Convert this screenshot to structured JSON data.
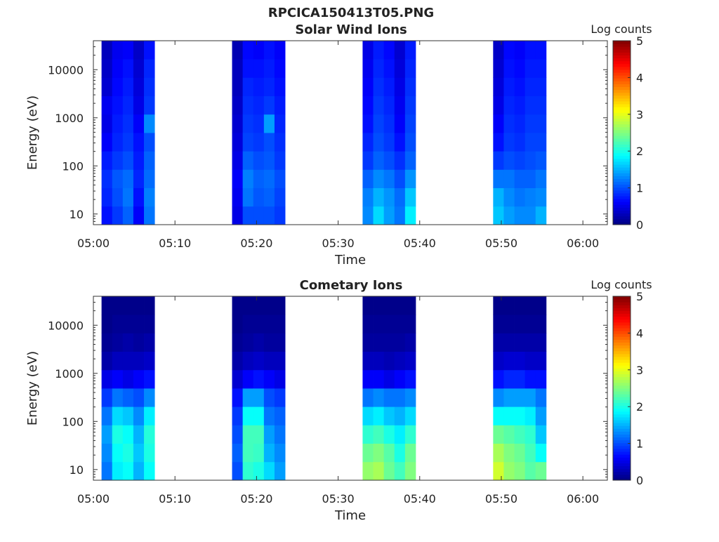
{
  "figure_title": "RPCICA150413T05.PNG",
  "chart_data": [
    {
      "type": "heatmap",
      "title": "Solar Wind Ions",
      "xlabel": "Time",
      "ylabel": "Energy (eV)",
      "y_scale": "log",
      "xlim": [
        "05:00",
        "06:03"
      ],
      "ylim": [
        6,
        40000
      ],
      "x_ticks": [
        "05:00",
        "05:10",
        "05:20",
        "05:30",
        "05:40",
        "05:50",
        "06:00"
      ],
      "y_ticks": [
        "10",
        "100",
        "1000",
        "10000"
      ],
      "colorbar": {
        "label": "Log counts",
        "range": [
          0,
          5
        ],
        "ticks": [
          "0",
          "1",
          "2",
          "3",
          "4",
          "5"
        ],
        "colormap": "jet"
      },
      "bursts": [
        {
          "start": "05:01",
          "end": "05:07.5",
          "columns": [
            [
              0.7,
              0.8,
              0.85,
              0.75,
              0.6,
              0.5,
              0.55,
              0.4,
              0.35,
              0.3
            ],
            [
              0.9,
              1.0,
              1.05,
              0.9,
              0.8,
              0.75,
              0.7,
              0.65,
              0.6,
              0.55
            ],
            [
              1.1,
              1.2,
              1.15,
              1.0,
              0.9,
              0.85,
              0.8,
              0.75,
              0.7,
              0.6
            ],
            [
              0.6,
              0.7,
              0.8,
              0.75,
              0.7,
              0.6,
              0.5,
              0.45,
              0.4,
              0.35
            ],
            [
              1.2,
              1.25,
              1.15,
              1.1,
              1.0,
              1.3,
              0.9,
              0.85,
              0.8,
              0.7
            ]
          ]
        },
        {
          "start": "05:17",
          "end": "05:23.5",
          "columns": [
            [
              0.5,
              0.55,
              0.6,
              0.5,
              0.45,
              0.4,
              0.35,
              0.3,
              0.3,
              0.25
            ],
            [
              1.0,
              1.2,
              1.25,
              1.1,
              0.95,
              0.9,
              0.85,
              0.8,
              0.7,
              0.65
            ],
            [
              1.0,
              1.05,
              1.1,
              1.0,
              0.9,
              0.85,
              0.8,
              0.75,
              0.7,
              0.6
            ],
            [
              1.0,
              1.1,
              1.15,
              1.05,
              1.0,
              1.4,
              0.9,
              0.8,
              0.75,
              0.7
            ],
            [
              0.9,
              0.95,
              1.0,
              0.9,
              0.85,
              0.8,
              0.75,
              0.7,
              0.65,
              0.6
            ]
          ]
        },
        {
          "start": "05:33",
          "end": "05:39.5",
          "columns": [
            [
              1.3,
              1.25,
              1.1,
              0.9,
              0.8,
              0.7,
              0.65,
              0.6,
              0.55,
              0.5
            ],
            [
              1.7,
              1.5,
              1.3,
              1.1,
              1.0,
              0.95,
              0.9,
              0.85,
              0.8,
              0.75
            ],
            [
              1.4,
              1.35,
              1.2,
              1.0,
              0.9,
              0.85,
              0.8,
              0.75,
              0.7,
              0.65
            ],
            [
              1.2,
              1.15,
              1.0,
              0.85,
              0.7,
              0.6,
              0.55,
              0.5,
              0.45,
              0.4
            ],
            [
              1.8,
              1.6,
              1.35,
              1.1,
              1.0,
              0.95,
              0.9,
              0.85,
              0.8,
              0.75
            ]
          ]
        },
        {
          "start": "05:49",
          "end": "05:55.5",
          "columns": [
            [
              1.6,
              1.5,
              1.2,
              0.9,
              0.7,
              0.6,
              0.5,
              0.45,
              0.4,
              0.35
            ],
            [
              1.4,
              1.3,
              1.2,
              1.0,
              0.9,
              0.85,
              0.8,
              0.75,
              0.7,
              0.65
            ],
            [
              1.3,
              1.2,
              1.1,
              0.95,
              0.85,
              0.8,
              0.75,
              0.7,
              0.65,
              0.6
            ],
            [
              1.3,
              1.25,
              1.1,
              1.0,
              0.95,
              0.9,
              0.85,
              0.8,
              0.75,
              0.7
            ],
            [
              1.5,
              1.3,
              1.2,
              1.05,
              0.95,
              0.9,
              0.85,
              0.8,
              0.75,
              0.7
            ]
          ]
        }
      ]
    },
    {
      "type": "heatmap",
      "title": "Cometary Ions",
      "xlabel": "Time",
      "ylabel": "Energy (eV)",
      "y_scale": "log",
      "xlim": [
        "05:00",
        "06:03"
      ],
      "ylim": [
        6,
        40000
      ],
      "x_ticks": [
        "05:00",
        "05:10",
        "05:20",
        "05:30",
        "05:40",
        "05:50",
        "06:00"
      ],
      "y_ticks": [
        "10",
        "100",
        "1000",
        "10000"
      ],
      "colorbar": {
        "label": "Log counts",
        "range": [
          0,
          5
        ],
        "ticks": [
          "0",
          "1",
          "2",
          "3",
          "4",
          "5"
        ],
        "colormap": "jet"
      },
      "bursts": [
        {
          "start": "05:01",
          "end": "05:07.5",
          "columns": [
            [
              1.2,
              1.3,
              1.4,
              1.2,
              0.9,
              0.5,
              0.2,
              0.1,
              0.05,
              0.05
            ],
            [
              1.8,
              1.9,
              2.0,
              1.7,
              1.2,
              0.6,
              0.3,
              0.15,
              0.1,
              0.05
            ],
            [
              1.9,
              2.0,
              1.9,
              1.6,
              1.1,
              0.5,
              0.3,
              0.2,
              0.1,
              0.05
            ],
            [
              1.5,
              1.6,
              1.5,
              1.3,
              1.0,
              0.6,
              0.3,
              0.15,
              0.1,
              0.05
            ],
            [
              1.9,
              2.0,
              2.05,
              1.8,
              1.3,
              0.7,
              0.35,
              0.2,
              0.1,
              0.05
            ]
          ]
        },
        {
          "start": "05:17",
          "end": "05:23.5",
          "columns": [
            [
              1.0,
              1.1,
              1.0,
              0.9,
              0.7,
              0.4,
              0.2,
              0.1,
              0.05,
              0.05
            ],
            [
              2.1,
              2.2,
              2.2,
              1.9,
              1.4,
              0.6,
              0.3,
              0.15,
              0.1,
              0.05
            ],
            [
              2.0,
              2.15,
              2.2,
              1.9,
              1.4,
              0.7,
              0.35,
              0.2,
              0.1,
              0.05
            ],
            [
              1.7,
              1.5,
              1.4,
              1.2,
              1.0,
              0.6,
              0.3,
              0.15,
              0.1,
              0.05
            ],
            [
              1.4,
              1.3,
              1.2,
              1.1,
              0.9,
              0.5,
              0.3,
              0.15,
              0.1,
              0.05
            ]
          ]
        },
        {
          "start": "05:33",
          "end": "05:39.5",
          "columns": [
            [
              2.6,
              2.4,
              2.1,
              1.7,
              1.2,
              0.6,
              0.3,
              0.15,
              0.1,
              0.05
            ],
            [
              2.7,
              2.5,
              2.2,
              1.8,
              1.3,
              0.6,
              0.3,
              0.15,
              0.1,
              0.05
            ],
            [
              2.4,
              2.3,
              2.0,
              1.6,
              1.2,
              0.5,
              0.25,
              0.15,
              0.1,
              0.05
            ],
            [
              2.2,
              2.0,
              1.8,
              1.5,
              1.2,
              0.6,
              0.3,
              0.15,
              0.1,
              0.05
            ],
            [
              2.5,
              2.4,
              2.1,
              1.7,
              1.3,
              0.7,
              0.35,
              0.2,
              0.1,
              0.05
            ]
          ]
        },
        {
          "start": "05:49",
          "end": "05:55.5",
          "columns": [
            [
              2.9,
              2.7,
              2.4,
              1.9,
              1.3,
              0.7,
              0.35,
              0.2,
              0.1,
              0.05
            ],
            [
              2.6,
              2.5,
              2.3,
              1.9,
              1.4,
              0.8,
              0.4,
              0.2,
              0.1,
              0.05
            ],
            [
              2.5,
              2.4,
              2.2,
              1.9,
              1.4,
              0.8,
              0.4,
              0.2,
              0.1,
              0.05
            ],
            [
              2.3,
              2.2,
              2.1,
              1.8,
              1.4,
              0.7,
              0.35,
              0.2,
              0.1,
              0.05
            ],
            [
              2.4,
              1.9,
              1.6,
              1.4,
              1.2,
              0.7,
              0.35,
              0.2,
              0.1,
              0.05
            ]
          ]
        }
      ]
    }
  ]
}
